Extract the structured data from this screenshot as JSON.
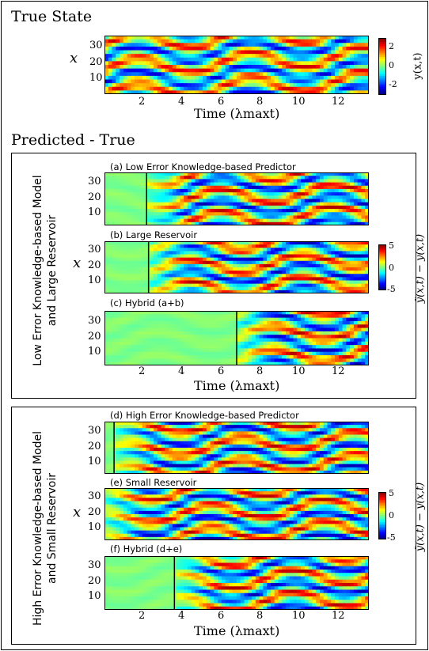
{
  "true_state": {
    "title": "True State",
    "ylabel": "x",
    "xlabel": "Time (λmaxt)",
    "colorbar_label": "y(x,t)",
    "colorbar_ticks": [
      "2",
      "0",
      "-2"
    ]
  },
  "predicted": {
    "title": "Predicted - True",
    "group1": {
      "side_label_line1": "Low Error Knowledge-based Model",
      "side_label_line2": "and Large Reservoir",
      "colorbar_label": "ỹ(x,t) − y(x,t)",
      "colorbar_ticks": [
        "5",
        "0",
        "-5"
      ],
      "xlabel": "Time (λmaxt)",
      "ylabel": "x"
    },
    "group2": {
      "side_label_line1": "High Error Knowledge-based Model",
      "side_label_line2": "and Small Reservoir",
      "colorbar_label": "ỹ(x,t) − y(x,t)",
      "colorbar_ticks": [
        "5",
        "0",
        "-5"
      ],
      "xlabel": "Time (λmaxt)",
      "ylabel": "x"
    }
  },
  "chart_data": [
    {
      "type": "heatmap",
      "title": "True State",
      "x_ticks": [
        "2",
        "4",
        "6",
        "8",
        "10",
        "12"
      ],
      "y_ticks": [
        "30",
        "20",
        "10"
      ],
      "xlim": [
        0,
        13.8
      ],
      "ylim": [
        0,
        35
      ],
      "clim": [
        -3,
        3
      ]
    },
    {
      "type": "heatmap",
      "title": "(a) Low Error Knowledge-based Predictor",
      "prediction_start_time": 2.2,
      "y_ticks": [
        "30",
        "20",
        "10"
      ],
      "clim": [
        -5,
        5
      ]
    },
    {
      "type": "heatmap",
      "title": "(b) Large Reservoir",
      "prediction_start_time": 2.3,
      "y_ticks": [
        "30",
        "20",
        "10"
      ],
      "clim": [
        -5,
        5
      ]
    },
    {
      "type": "heatmap",
      "title": "(c) Hybrid (a+b)",
      "prediction_start_time": 6.9,
      "x_ticks": [
        "2",
        "4",
        "6",
        "8",
        "10",
        "12"
      ],
      "y_ticks": [
        "30",
        "20",
        "10"
      ],
      "clim": [
        -5,
        5
      ]
    },
    {
      "type": "heatmap",
      "title": "(d) High Error Knowledge-based Predictor",
      "prediction_start_time": 0.5,
      "y_ticks": [
        "30",
        "20",
        "10"
      ],
      "clim": [
        -5,
        5
      ]
    },
    {
      "type": "heatmap",
      "title": "(e) Small Reservoir",
      "prediction_start_time": 0.0,
      "y_ticks": [
        "30",
        "20",
        "10"
      ],
      "clim": [
        -5,
        5
      ]
    },
    {
      "type": "heatmap",
      "title": "(f) Hybrid (d+e)",
      "prediction_start_time": 3.65,
      "x_ticks": [
        "2",
        "4",
        "6",
        "8",
        "10",
        "12"
      ],
      "y_ticks": [
        "30",
        "20",
        "10"
      ],
      "clim": [
        -5,
        5
      ]
    }
  ]
}
